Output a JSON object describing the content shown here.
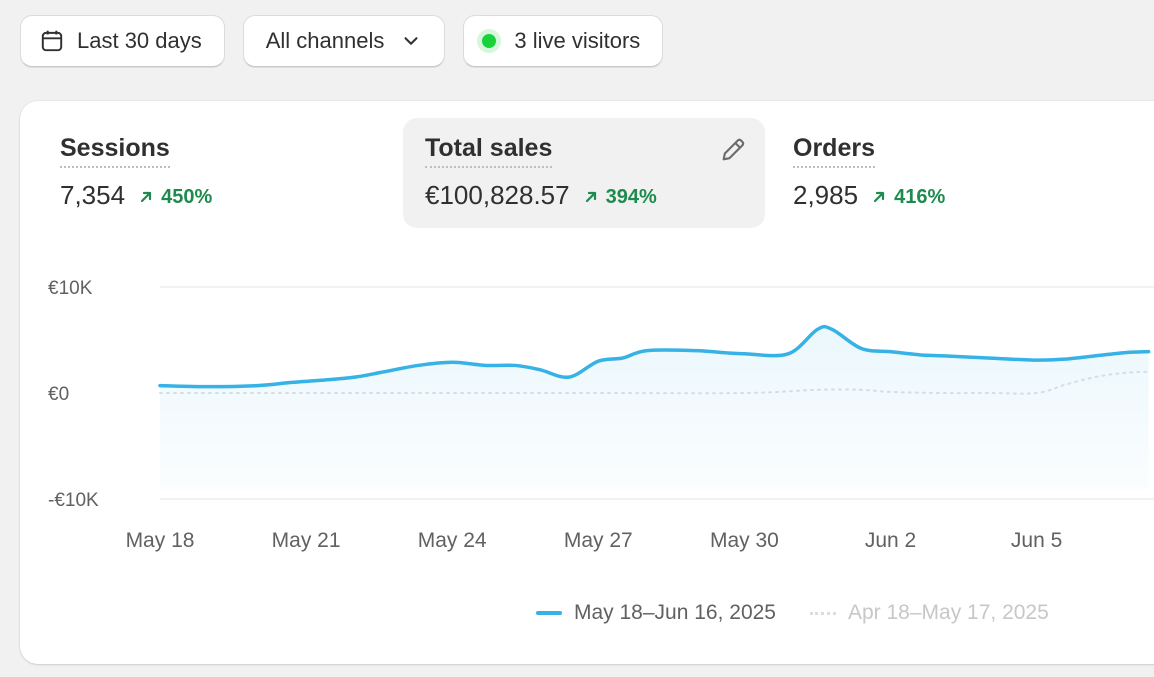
{
  "filters": {
    "date_range": "Last 30 days",
    "channel": "All channels",
    "live_visitors": "3 live visitors"
  },
  "metrics": [
    {
      "label": "Sessions",
      "value": "7,354",
      "change": "450%"
    },
    {
      "label": "Total sales",
      "value": "€100,828.57",
      "change": "394%"
    },
    {
      "label": "Orders",
      "value": "2,985",
      "change": "416%"
    }
  ],
  "icons": {
    "date": "calendar-icon",
    "channel": "chevron-down-icon",
    "live": "live-dot-icon",
    "edit": "pencil-icon",
    "trend": "arrow-up-right-icon"
  },
  "colors": {
    "current_series": "#36b2e6",
    "previous_series": "#d6dde3",
    "positive_change": "#1d8a4e",
    "live_indicator": "#19d13a"
  },
  "chart_data": {
    "type": "area",
    "y_ticks": [
      "€10K",
      "€0",
      "-€10K"
    ],
    "ylim": [
      -10000,
      10000
    ],
    "x_ticks": [
      "May 18",
      "May 21",
      "May 24",
      "May 27",
      "May 30",
      "Jun 2",
      "Jun 5"
    ],
    "x_tick_days": [
      0,
      3,
      6,
      9,
      12,
      15,
      18
    ],
    "grid": true,
    "legend_position": "bottom",
    "series": [
      {
        "name": "May 18–Jun 16, 2025",
        "style": "solid",
        "x": [
          0,
          1,
          2,
          2.7,
          3.3,
          4,
          4.6,
          5.3,
          6,
          6.7,
          7.3,
          7.8,
          8.4,
          9,
          9.5,
          10,
          11,
          11.6,
          12,
          12.9,
          13.5,
          13.8,
          14.4,
          15,
          15.6,
          16.1,
          17,
          18,
          18.6,
          19.2,
          19.8,
          20.3
        ],
        "y": [
          700,
          600,
          700,
          1000,
          1200,
          1500,
          2000,
          2600,
          2900,
          2600,
          2600,
          2200,
          1500,
          3000,
          3300,
          4000,
          4000,
          3800,
          3700,
          3700,
          6000,
          6000,
          4200,
          3900,
          3600,
          3500,
          3300,
          3100,
          3200,
          3500,
          3800,
          3900
        ]
      },
      {
        "name": "Apr 18–May 17, 2025",
        "style": "dotted",
        "x": [
          0,
          5,
          9,
          12,
          13.5,
          14.4,
          15,
          16,
          17,
          18,
          18.6,
          19.2,
          19.8,
          20.3
        ],
        "y": [
          0,
          0,
          0,
          0,
          300,
          300,
          100,
          0,
          0,
          0,
          800,
          1500,
          1900,
          2000
        ]
      }
    ]
  }
}
